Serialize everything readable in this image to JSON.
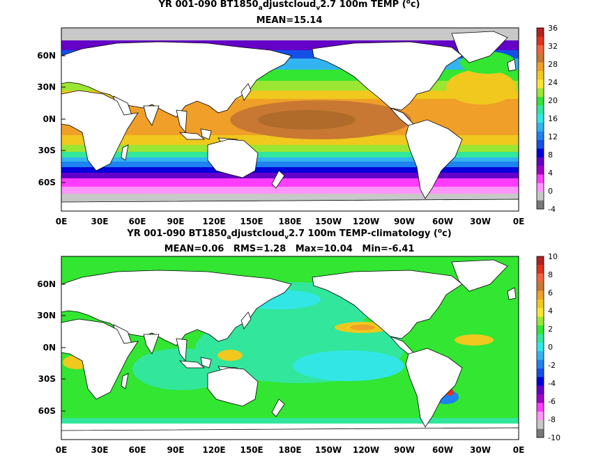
{
  "colors": {
    "land": "#ffffff",
    "missing": "#c8c8c8",
    "frame": "#000000"
  },
  "panels": [
    {
      "title_parts": [
        "YR 001-090 BT1850",
        "a",
        "djustcloud",
        "v",
        "2.7 100m TEMP (",
        "o",
        "c)"
      ],
      "stats": "MEAN=15.14",
      "lat_labels": [
        "60N",
        "30N",
        "0N",
        "30S",
        "60S"
      ],
      "lon_labels": [
        "0E",
        "30E",
        "60E",
        "90E",
        "120E",
        "150E",
        "180E",
        "150W",
        "120W",
        "90W",
        "60W",
        "30W",
        "0E"
      ],
      "colorbar": {
        "ticks": [
          "36",
          "32",
          "28",
          "24",
          "20",
          "16",
          "12",
          "8",
          "4",
          "0",
          "-4"
        ],
        "colors": [
          "#b22222",
          "#e0321e",
          "#f0643c",
          "#c87832",
          "#f0a028",
          "#f0c81e",
          "#fae632",
          "#9be632",
          "#32e632",
          "#32e69b",
          "#32e6e6",
          "#32b4f0",
          "#1e82f0",
          "#1450e6",
          "#0000dc",
          "#6400c8",
          "#a000c8",
          "#ff3cff",
          "#ff96ff",
          "#c8c8c8",
          "#787878"
        ]
      }
    },
    {
      "title_parts": [
        "YR 001-090 BT1850",
        "a",
        "djustcloud",
        "v",
        "2.7 100m TEMP-climatology (",
        "o",
        "c)"
      ],
      "stats": "MEAN=0.06   RMS=1.28   Max=10.04   Min=-6.41",
      "lat_labels": [
        "60N",
        "30N",
        "0N",
        "30S",
        "60S"
      ],
      "lon_labels": [
        "0E",
        "30E",
        "60E",
        "90E",
        "120E",
        "150E",
        "180E",
        "150W",
        "120W",
        "90W",
        "60W",
        "30W",
        "0E"
      ],
      "colorbar": {
        "ticks": [
          "10",
          "8",
          "6",
          "4",
          "2",
          "0",
          "-2",
          "-4",
          "-6",
          "-8",
          "-10"
        ],
        "colors": [
          "#b22222",
          "#e0321e",
          "#f0643c",
          "#c87832",
          "#f0a028",
          "#f0c81e",
          "#fae632",
          "#9be632",
          "#32e632",
          "#32e69b",
          "#32e6e6",
          "#32b4f0",
          "#1e82f0",
          "#1450e6",
          "#0000dc",
          "#6400c8",
          "#a000c8",
          "#ff3cff",
          "#ff96ff",
          "#c8c8c8",
          "#787878"
        ]
      }
    }
  ]
}
